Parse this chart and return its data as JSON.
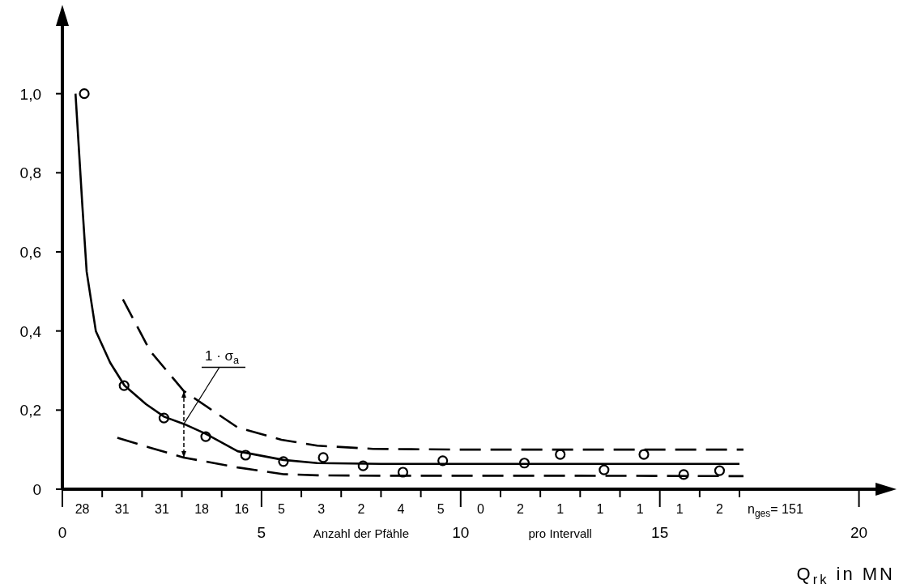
{
  "chart_data": {
    "type": "scatter",
    "xlabel": "Q$_{rk}$ in MN",
    "xlim": [
      0,
      20.7
    ],
    "ylim": [
      0,
      1.2
    ],
    "xticks": [
      0,
      {
        "value": 1,
        "label": null
      },
      {
        "value": 2,
        "label": null
      },
      {
        "value": 3,
        "label": null
      },
      {
        "value": 4,
        "label": null
      },
      5,
      {
        "value": 6,
        "label": null
      },
      {
        "value": 7,
        "label": null
      },
      {
        "value": 8,
        "label": null
      },
      {
        "value": 9,
        "label": null
      },
      10,
      {
        "value": 11,
        "label": null
      },
      {
        "value": 12,
        "label": null
      },
      {
        "value": 13,
        "label": null
      },
      {
        "value": 14,
        "label": null
      },
      15,
      {
        "value": 16,
        "label": null
      },
      {
        "value": 17,
        "label": null
      },
      20
    ],
    "yticks": [
      0,
      {
        "value": 0.2,
        "label": "0,2"
      },
      {
        "value": 0.4,
        "label": "0,4"
      },
      {
        "value": 0.6,
        "label": "0,6"
      },
      {
        "value": 0.8,
        "label": "0,8"
      },
      {
        "value": 1,
        "label": "1,0"
      }
    ],
    "grid": false,
    "marker": "circle",
    "series": [
      {
        "color": "#000000",
        "x": [
          0.55,
          1.55,
          2.55,
          3.6,
          4.6,
          5.55,
          6.55,
          7.55,
          8.55,
          9.55,
          11.6,
          12.5,
          13.6,
          14.6,
          15.6,
          16.5
        ],
        "values": [
          1.0,
          0.262,
          0.18,
          0.133,
          0.086,
          0.07,
          0.08,
          0.059,
          0.043,
          0.072,
          0.066,
          0.088,
          0.049,
          0.088,
          0.037,
          0.047
        ]
      },
      {
        "type": "line",
        "color": "#000000",
        "line_style": "solid",
        "marker": "none",
        "x": [
          0.33,
          0.5,
          0.61,
          0.84,
          1.2,
          1.56,
          2.1,
          2.56,
          3.05,
          3.6,
          4.4,
          5.55,
          6.4,
          8,
          10,
          13,
          17
        ],
        "values": [
          1.0,
          0.72,
          0.55,
          0.4,
          0.32,
          0.262,
          0.215,
          0.183,
          0.165,
          0.14,
          0.096,
          0.074,
          0.066,
          0.064,
          0.064,
          0.064,
          0.064
        ]
      },
      {
        "type": "line",
        "color": "#000000",
        "line_style": "dashed",
        "marker": "none",
        "x": [
          1.52,
          2.2,
          3.05,
          4.4,
          5.5,
          6.4,
          7.8,
          10,
          13,
          17.1
        ],
        "values": [
          0.48,
          0.35,
          0.248,
          0.156,
          0.125,
          0.11,
          0.102,
          0.1,
          0.1,
          0.1
        ]
      },
      {
        "type": "line",
        "color": "#000000",
        "line_style": "dashed",
        "marker": "none",
        "x": [
          1.38,
          2.2,
          3.05,
          4.4,
          5.55,
          6.4,
          8,
          10,
          13,
          17.1
        ],
        "values": [
          0.13,
          0.105,
          0.08,
          0.055,
          0.038,
          0.035,
          0.034,
          0.034,
          0.034,
          0.033
        ]
      }
    ],
    "annotations": [
      {
        "text": "1 · σ$_{a}$",
        "x": 3.05,
        "y": 0.165
      },
      "28",
      "31",
      "31",
      "18",
      "16",
      "5",
      "3",
      "2",
      "4",
      "5",
      "0",
      "2",
      "1",
      "1",
      "1",
      "1",
      "2",
      "n$_{ges}$= 151",
      "Anzahl der Pfähle",
      "pro Intervall"
    ]
  }
}
